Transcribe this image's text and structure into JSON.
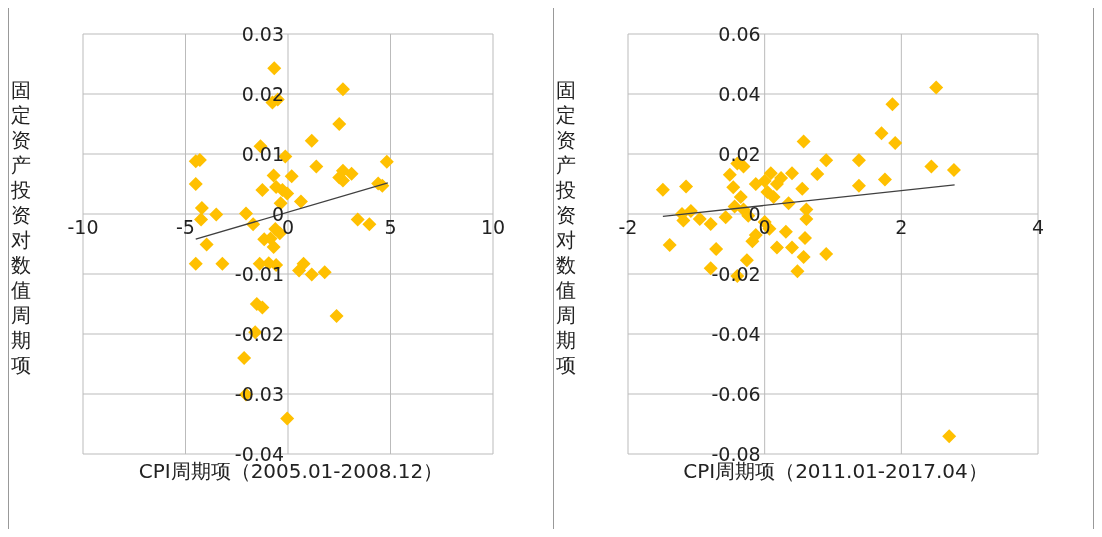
{
  "chart_data": [
    {
      "type": "scatter",
      "xlabel": "CPI周期项（2005.01-2008.12）",
      "ylabel": "固定资产投资对数值周期项",
      "xlim": [
        -10,
        10
      ],
      "ylim": [
        -0.04,
        0.03
      ],
      "xticks": [
        -10,
        -5,
        0,
        5,
        10
      ],
      "yticks": [
        -0.04,
        -0.03,
        -0.02,
        -0.01,
        0,
        0.01,
        0.02,
        0.03
      ],
      "grid": true,
      "series": [
        {
          "type": "scatter",
          "marker": "diamond",
          "color": "#ffc000",
          "x": [
            -0.67,
            2.68,
            -0.76,
            -0.5,
            -1.34,
            1.16,
            2.5,
            -0.13,
            -4.5,
            -4.3,
            4.82,
            1.38,
            -4.5,
            0.18,
            -0.7,
            2.68,
            3.1,
            2.5,
            2.68,
            4.4,
            4.6,
            -1.25,
            -0.58,
            -0.27,
            -0.04,
            -0.36,
            0.63,
            -4.2,
            -4.24,
            -3.5,
            -2.05,
            -1.7,
            3.4,
            3.97,
            -0.62,
            -0.4,
            -0.85,
            -3.97,
            -1.16,
            -0.7,
            -4.5,
            -3.2,
            -1.38,
            -0.94,
            -0.58,
            0.54,
            0.76,
            1.16,
            1.79,
            -1.52,
            -1.25,
            2.37,
            -1.6,
            -2.14,
            -2.05,
            -0.04
          ],
          "values": [
            0.0243,
            0.0208,
            0.0186,
            0.0191,
            0.0113,
            0.0122,
            0.015,
            0.0096,
            0.0088,
            0.009,
            0.0087,
            0.0079,
            0.005,
            0.0063,
            0.0064,
            0.0072,
            0.0067,
            0.0061,
            0.0056,
            0.0051,
            0.0047,
            0.004,
            0.0045,
            0.004,
            0.0034,
            0.0018,
            0.0021,
            0.001,
            -0.0009,
            -0.0001,
            0.0001,
            -0.0017,
            -0.0009,
            -0.0017,
            -0.0025,
            -0.0032,
            -0.0041,
            -0.0051,
            -0.0042,
            -0.0055,
            -0.0083,
            -0.0083,
            -0.0083,
            -0.0082,
            -0.0085,
            -0.0094,
            -0.0083,
            -0.0101,
            -0.0097,
            -0.015,
            -0.0156,
            -0.017,
            -0.0197,
            -0.024,
            -0.0301,
            -0.0341
          ]
        },
        {
          "type": "line",
          "marker": "none",
          "color": "#404040",
          "x": [
            -4.5,
            4.87
          ],
          "values": [
            -0.0042,
            0.0052
          ]
        }
      ]
    },
    {
      "type": "scatter",
      "xlabel": "CPI周期项（2011.01-2017.04）",
      "ylabel": "固定资产投资对数值周期项",
      "xlim": [
        -2,
        4
      ],
      "ylim": [
        -0.08,
        0.06
      ],
      "xticks": [
        -2,
        0,
        2,
        4
      ],
      "yticks": [
        -0.08,
        -0.06,
        -0.04,
        -0.02,
        0,
        0.02,
        0.04,
        0.06
      ],
      "grid": true,
      "series": [
        {
          "type": "scatter",
          "marker": "diamond",
          "color": "#ffc000",
          "x": [
            -1.49,
            -1.15,
            -1.21,
            -1.08,
            -1.19,
            -0.95,
            -0.79,
            -0.57,
            -1.39,
            -0.71,
            -0.51,
            -0.4,
            -0.31,
            -0.46,
            -0.35,
            -0.44,
            -0.31,
            -0.24,
            -0.13,
            0,
            0.09,
            0.18,
            0.04,
            0.13,
            0.24,
            0.4,
            0.35,
            0.55,
            0,
            -0.13,
            -0.18,
            0.07,
            0.31,
            0.18,
            0.4,
            0.61,
            0.61,
            0.59,
            0.57,
            0.9,
            0.57,
            0.77,
            0.9,
            1.38,
            1.38,
            1.76,
            1.71,
            1.87,
            1.91,
            2.51,
            2.44,
            2.77,
            2.7,
            -0.79,
            -0.4,
            -0.26,
            0.48
          ],
          "values": [
            0.0081,
            0.0092,
            0,
            0.001,
            -0.0022,
            -0.0017,
            -0.0033,
            -0.0011,
            -0.0103,
            -0.0117,
            0.0131,
            0.0168,
            0.0158,
            0.0089,
            0.0057,
            0.0025,
            0.0015,
            -0.0006,
            0.01,
            0.011,
            0.0136,
            0.01,
            0.0073,
            0.0057,
            0.012,
            0.0136,
            0.0036,
            0.0084,
            -0.0027,
            -0.007,
            -0.0091,
            -0.0049,
            -0.0059,
            -0.0112,
            -0.0112,
            0.0015,
            -0.0017,
            -0.008,
            -0.0143,
            -0.0133,
            0.0242,
            0.0133,
            0.0179,
            0.0179,
            0.0094,
            0.0115,
            0.0269,
            0.0366,
            0.0237,
            0.0422,
            0.0158,
            0.0147,
            -0.0741,
            -0.0181,
            -0.0207,
            -0.0154,
            -0.0191
          ]
        },
        {
          "type": "line",
          "marker": "none",
          "color": "#404040",
          "x": [
            -1.49,
            2.78
          ],
          "values": [
            -0.0008,
            0.0097
          ]
        }
      ]
    }
  ]
}
